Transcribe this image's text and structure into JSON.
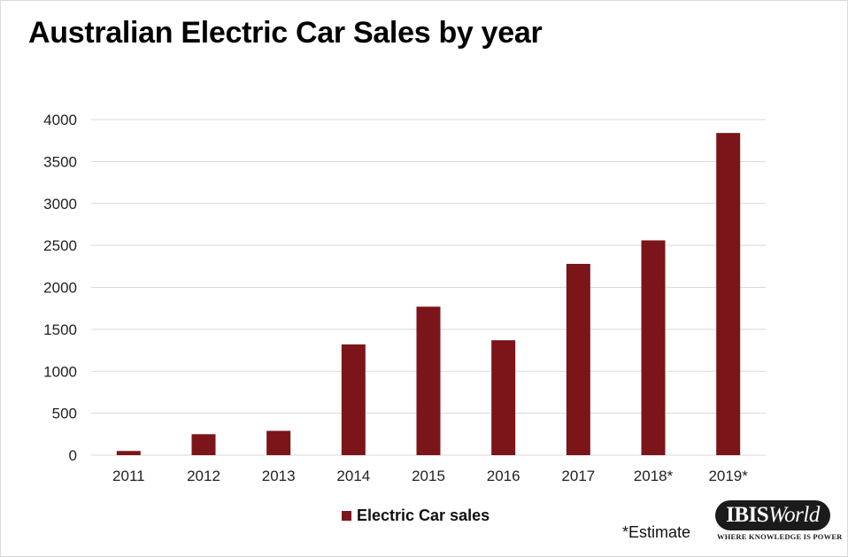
{
  "chart_data": {
    "type": "bar",
    "title": "Australian Electric Car Sales by year",
    "categories": [
      "2011",
      "2012",
      "2013",
      "2014",
      "2015",
      "2016",
      "2017",
      "2018*",
      "2019*"
    ],
    "series": [
      {
        "name": "Electric Car sales",
        "values": [
          50,
          250,
          290,
          1320,
          1770,
          1370,
          2280,
          2560,
          3840
        ]
      }
    ],
    "y_ticks": [
      "0",
      "500",
      "1000",
      "1500",
      "2000",
      "2500",
      "3000",
      "3500",
      "4000"
    ],
    "ylim": [
      0,
      4000
    ],
    "grid": true,
    "legend_position": "bottom",
    "bar_color": "#7b1519",
    "note": "*Estimate"
  },
  "logo": {
    "name_bold": "IBIS",
    "name_italic": "World",
    "tagline": "WHERE KNOWLEDGE IS POWER"
  }
}
